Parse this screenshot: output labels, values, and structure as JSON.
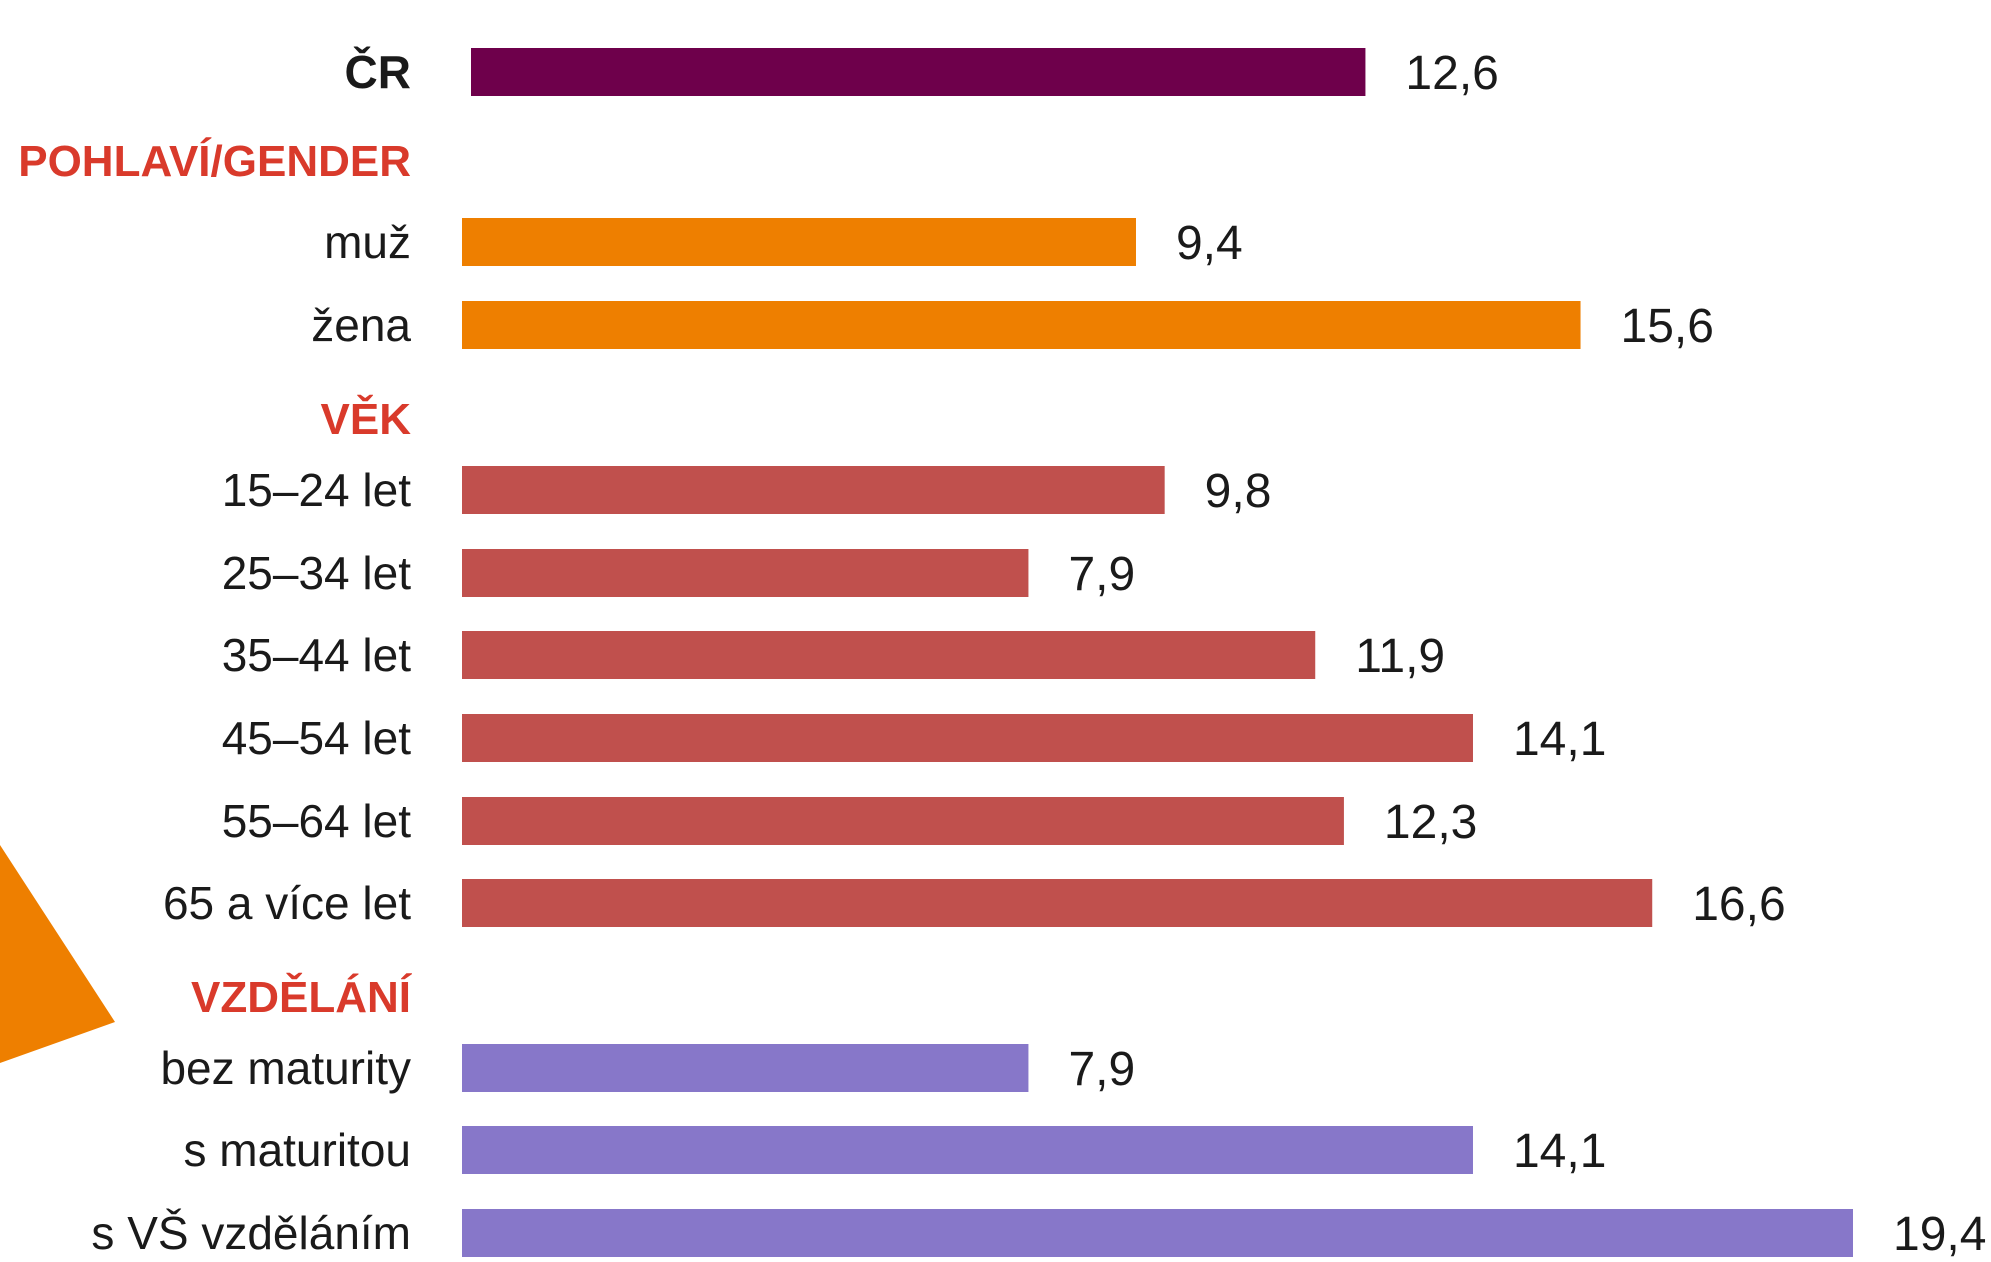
{
  "chart_data": {
    "type": "bar",
    "orientation": "horizontal",
    "xlim": [
      0,
      20
    ],
    "grid": false,
    "legend": "none",
    "colors": {
      "total": "#6e004b",
      "gender": "#ee7f00",
      "age": "#c0504d",
      "education": "#8777c9",
      "section_heading": "#d93a2b",
      "decor_triangle": "#ee7f00"
    },
    "rows": [
      {
        "kind": "bar",
        "label": "ČR",
        "value": 12.6,
        "display": "12,6",
        "group": "total",
        "bold": true
      },
      {
        "kind": "section",
        "label": "POHLAVÍ/GENDER"
      },
      {
        "kind": "bar",
        "label": "muž",
        "value": 9.4,
        "display": "9,4",
        "group": "gender"
      },
      {
        "kind": "bar",
        "label": "žena",
        "value": 15.6,
        "display": "15,6",
        "group": "gender"
      },
      {
        "kind": "section",
        "label": "VĚK"
      },
      {
        "kind": "bar",
        "label": "15–24 let",
        "value": 9.8,
        "display": "9,8",
        "group": "age"
      },
      {
        "kind": "bar",
        "label": "25–34 let",
        "value": 7.9,
        "display": "7,9",
        "group": "age"
      },
      {
        "kind": "bar",
        "label": "35–44 let",
        "value": 11.9,
        "display": "11,9",
        "group": "age"
      },
      {
        "kind": "bar",
        "label": "45–54 let",
        "value": 14.1,
        "display": "14,1",
        "group": "age"
      },
      {
        "kind": "bar",
        "label": "55–64 let",
        "value": 12.3,
        "display": "12,3",
        "group": "age"
      },
      {
        "kind": "bar",
        "label": "65 a více let",
        "value": 16.6,
        "display": "16,6",
        "group": "age"
      },
      {
        "kind": "section",
        "label": "VZDĚLÁNÍ"
      },
      {
        "kind": "bar",
        "label": "bez maturity",
        "value": 7.9,
        "display": "7,9",
        "group": "education"
      },
      {
        "kind": "bar",
        "label": "s maturitou",
        "value": 14.1,
        "display": "14,1",
        "group": "education"
      },
      {
        "kind": "bar",
        "label": "s VŠ vzděláním",
        "value": 19.4,
        "display": "19,4",
        "group": "education"
      }
    ]
  }
}
